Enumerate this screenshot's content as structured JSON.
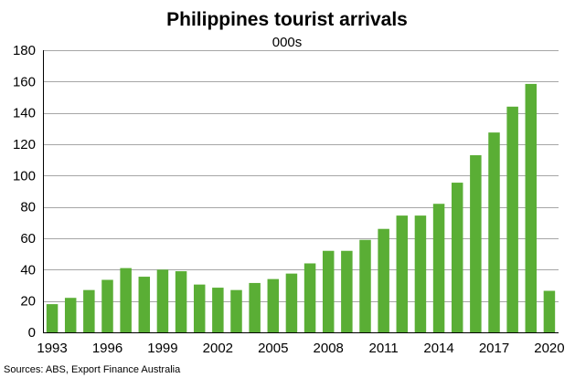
{
  "chart_data": {
    "type": "bar",
    "title": "Philippines tourist arrivals",
    "subtitle": "000s",
    "xlabel": "",
    "ylabel": "",
    "x": [
      1993,
      1994,
      1995,
      1996,
      1997,
      1998,
      1999,
      2000,
      2001,
      2002,
      2003,
      2004,
      2005,
      2006,
      2007,
      2008,
      2009,
      2010,
      2011,
      2012,
      2013,
      2014,
      2015,
      2016,
      2017,
      2018,
      2019,
      2020
    ],
    "values": [
      18,
      22,
      27,
      33.5,
      41,
      35.5,
      40,
      39,
      30.5,
      28.5,
      27,
      31.5,
      34,
      37.5,
      44,
      52,
      52,
      59,
      66,
      74.5,
      74.5,
      82,
      95.5,
      113,
      127.5,
      144,
      158.5,
      26.5
    ],
    "x_tick_labels": [
      "1993",
      "1996",
      "1999",
      "2002",
      "2005",
      "2008",
      "2011",
      "2014",
      "2017",
      "2020"
    ],
    "y_ticks": [
      0,
      20,
      40,
      60,
      80,
      100,
      120,
      140,
      160,
      180
    ],
    "ylim": [
      0,
      180
    ],
    "grid": true,
    "legend": "none",
    "bar_color": "#5aae35",
    "grid_color": "#a6a6a6",
    "source": "Sources: ABS, Export Finance Australia"
  }
}
